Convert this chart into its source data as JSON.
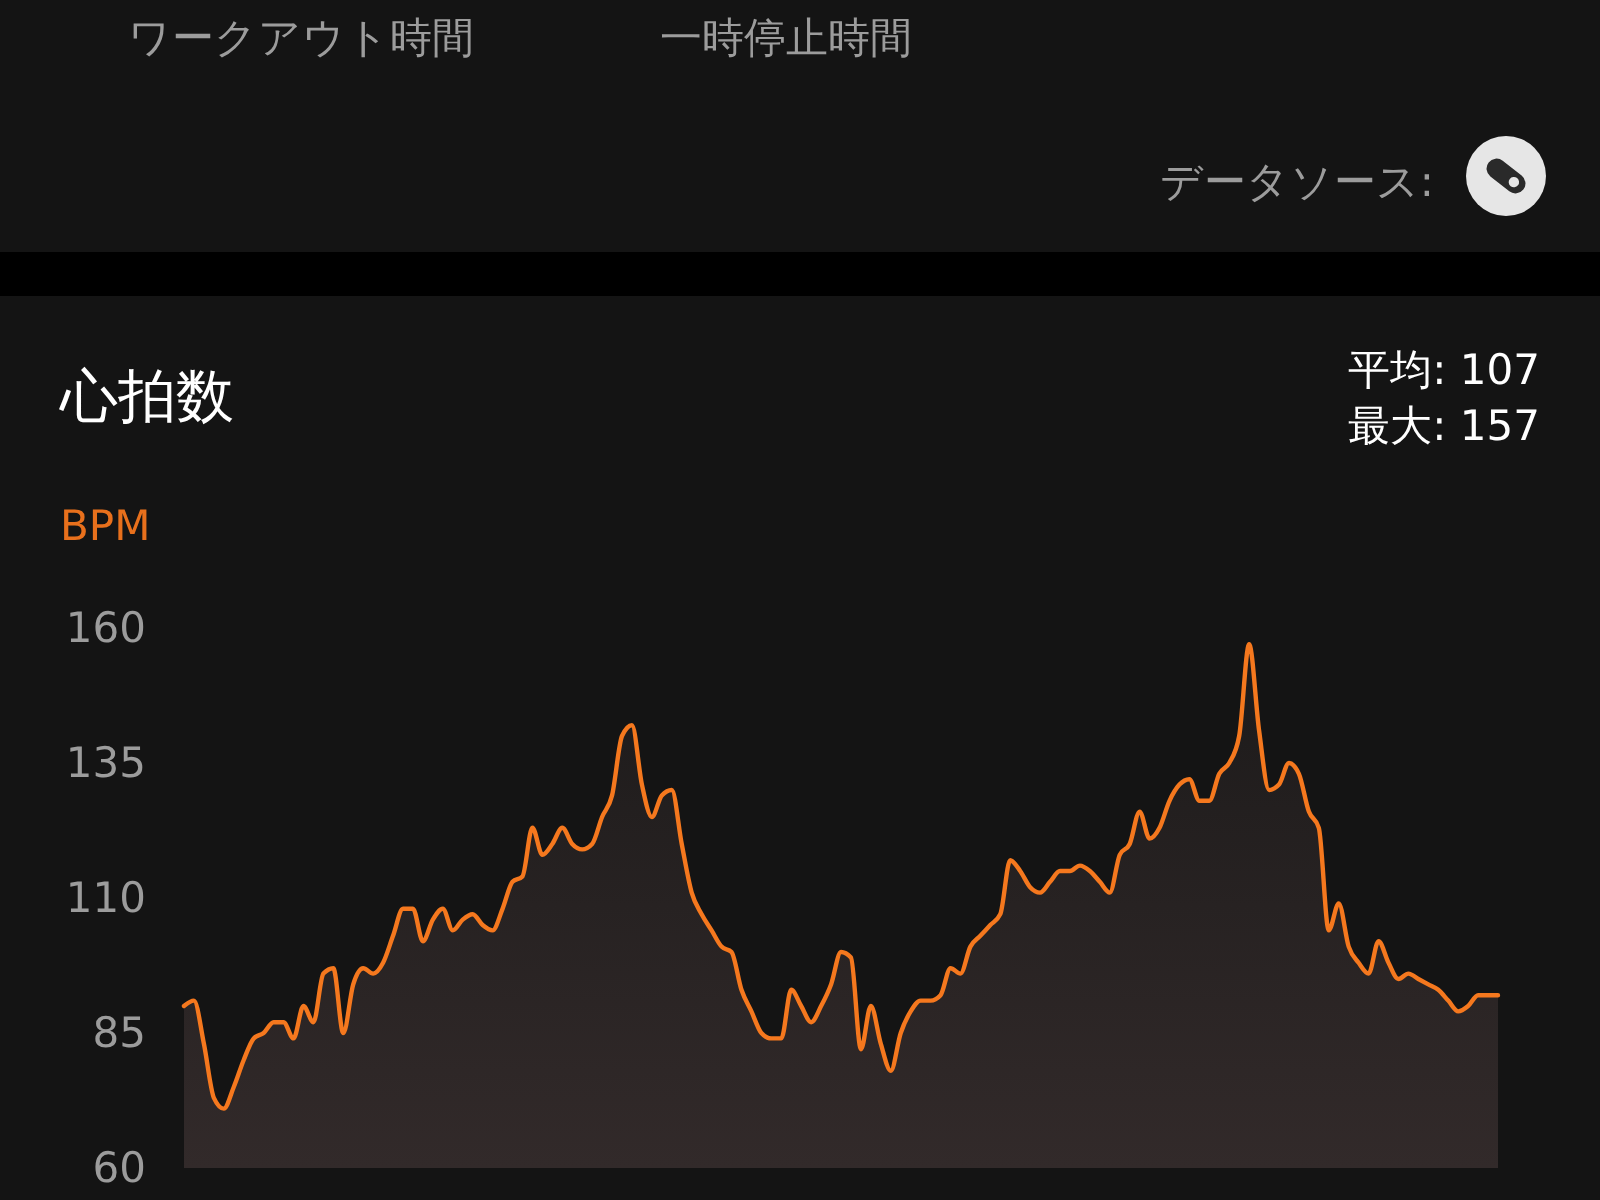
{
  "chart_data": {
    "type": "area",
    "title": "心拍数",
    "ylabel": "BPM",
    "annotations": [
      "ワークアウト時間",
      "一時停止時間",
      "データソース:",
      "平均: 107",
      "最大: 157"
    ],
    "categories": [
      null,
      null,
      null,
      null,
      null,
      null,
      null,
      null,
      null,
      null,
      null,
      null,
      null,
      null,
      null,
      null,
      null,
      null,
      null,
      null,
      null,
      null,
      null,
      null,
      null,
      null,
      null,
      null,
      null,
      null,
      null,
      null,
      null,
      null,
      null,
      null,
      null,
      null,
      null,
      null,
      null,
      null,
      null,
      null,
      null,
      null,
      null,
      null,
      null,
      null,
      null,
      null,
      null,
      null,
      null,
      null,
      null,
      null,
      null,
      null,
      null,
      null,
      null,
      null,
      null,
      null,
      null,
      null,
      null,
      null,
      null,
      null,
      null,
      null,
      null,
      null,
      null,
      null,
      null,
      null,
      null,
      null,
      null,
      null,
      null,
      null,
      null,
      null,
      null,
      null,
      null,
      null,
      null,
      null,
      null,
      null,
      null,
      null,
      null,
      null,
      null,
      null,
      null,
      null,
      null,
      null,
      null,
      null,
      null,
      null,
      null,
      null,
      null,
      null,
      null,
      null,
      null,
      null,
      null,
      null,
      null,
      null,
      null,
      null,
      null,
      null,
      null,
      null,
      null,
      null,
      null,
      null,
      null
    ],
    "series": [
      {
        "color": "#f5781e",
        "values": [
          90,
          91,
          83,
          73,
          71,
          75,
          80,
          84,
          85,
          87,
          87,
          84,
          90,
          87,
          96,
          97,
          85,
          94,
          97,
          96,
          98,
          103,
          108,
          108,
          102,
          106,
          108,
          104,
          106,
          107,
          105,
          104,
          108,
          113,
          114,
          123,
          118,
          120,
          123,
          120,
          119,
          120,
          125,
          129,
          140,
          142,
          131,
          125,
          129,
          130,
          120,
          111,
          107,
          104,
          101,
          100,
          93,
          89,
          85,
          84,
          84,
          93,
          90,
          87,
          90,
          94,
          100,
          99,
          82,
          90,
          83,
          78,
          85,
          89,
          91,
          91,
          92,
          97,
          96,
          101,
          103,
          105,
          107,
          117,
          115,
          112,
          111,
          113,
          115,
          115,
          116,
          115,
          113,
          111,
          118,
          120,
          126,
          121,
          123,
          128,
          131,
          132,
          128,
          128,
          133,
          135,
          140,
          157,
          141,
          130,
          131,
          135,
          133,
          126,
          123,
          104,
          109,
          101,
          98,
          96,
          102,
          98,
          95,
          96,
          95,
          94,
          93,
          91,
          89,
          90,
          92,
          92,
          92
        ]
      }
    ],
    "ylim": [
      60,
      160
    ],
    "yticks": [
      60,
      85,
      110,
      135,
      160
    ],
    "tick_labels": "y"
  }
}
